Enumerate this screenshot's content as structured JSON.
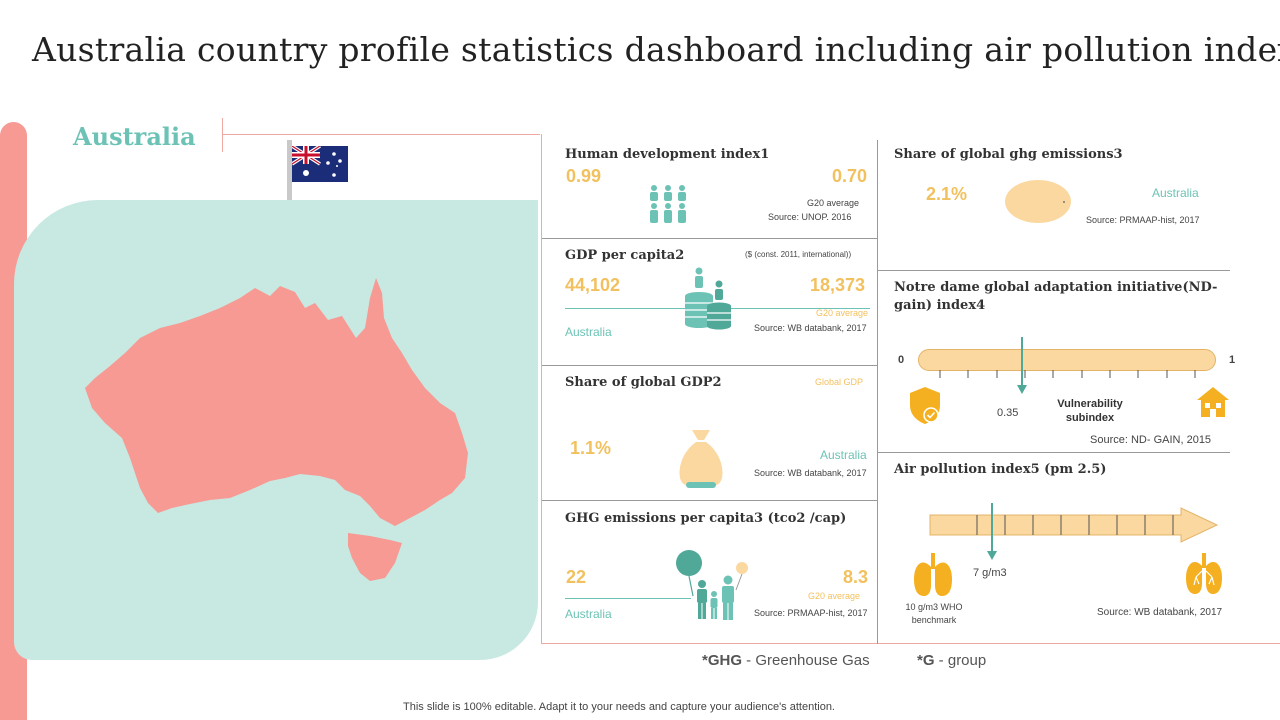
{
  "title": "Australia country profile statistics dashboard including air pollution index",
  "country": "Australia",
  "hdi": {
    "title": "Human development index1",
    "value": "0.99",
    "g20_value": "0.70",
    "g20_label": "G20 average",
    "source": "Source: UNOP.  2016"
  },
  "gdp": {
    "title": "GDP per capita2",
    "unit": "($ (const. 2011, international))",
    "value": "44,102",
    "g20_value": "18,373",
    "country_label": "Australia",
    "g20_label": "G20 average",
    "source": "Source: WB databank, 2017"
  },
  "share_gdp": {
    "title": "Share of global GDP2",
    "global_label": "Global GDP",
    "value": "1.1%",
    "country_label": "Australia",
    "source": "Source: WB databank, 2017"
  },
  "ghg_capita": {
    "title": "GHG emissions per capita3 (tco2 /cap)",
    "value": "22",
    "g20_value": "8.3",
    "country_label": "Australia",
    "g20_label": "G20 average",
    "source": "Source: PRMAAP-hist, 2017"
  },
  "share_ghg": {
    "title": "Share of global ghg emissions3",
    "value": "2.1%",
    "country_label": "Australia",
    "source": "Source: PRMAAP-hist, 2017"
  },
  "ndgain": {
    "title_line1": "Notre dame global adaptation initiative(ND-",
    "title_line2": "gain) index4",
    "min": "0",
    "max": "1",
    "value": "0.35",
    "value_fraction": 0.35,
    "vuln_line1": "Vulnerability",
    "vuln_line2": "subindex",
    "source": "Source: ND- GAIN,  2015"
  },
  "air": {
    "title": "Air pollution index5 (pm 2.5)",
    "value": "7 g/m3",
    "benchmark_line1": "10 g/m3 WHO",
    "benchmark_line2": "benchmark",
    "source": "Source: WB databank, 2017"
  },
  "footnotes": {
    "ghg_key": "*GHG",
    "ghg_text": " - Greenhouse  Gas",
    "g_key": "*G",
    "g_text": " - group"
  },
  "footer": "This slide is 100% editable. Adapt it to your needs and capture your audience's attention.",
  "colors": {
    "teal": "#6cc3b5",
    "gold": "#f2c15f",
    "salmon": "#f69a93",
    "mint": "#c8e8e2",
    "peach": "#fad8a0",
    "orange": "#f4b020"
  }
}
